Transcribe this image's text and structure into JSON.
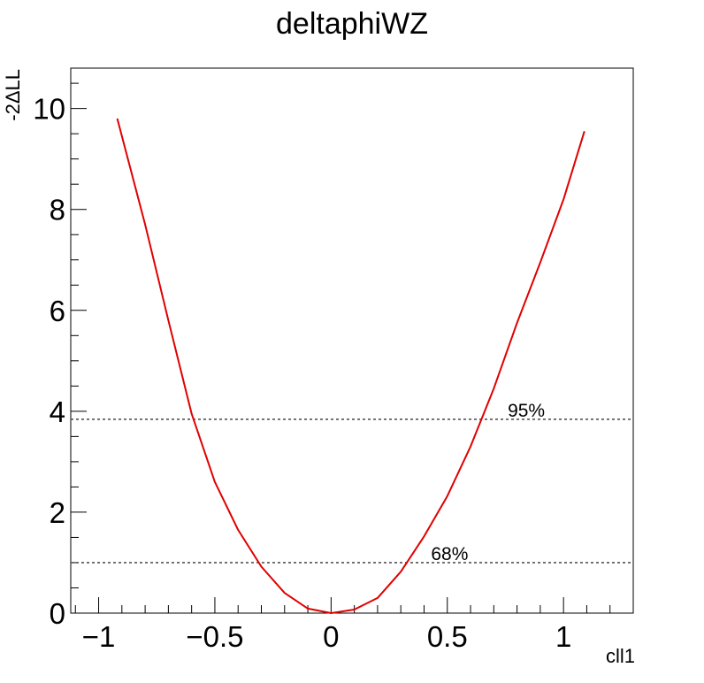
{
  "chart_data": {
    "type": "line",
    "title": "deltaphiWZ",
    "xlabel": "cll1",
    "ylabel": "-2ΔLL",
    "xlim": [
      -1.12,
      1.3
    ],
    "ylim": [
      0,
      10.8
    ],
    "x_ticks": [
      -1,
      -0.5,
      0,
      0.5,
      1
    ],
    "x_tick_labels": [
      "−1",
      "−0.5",
      "0",
      "0.5",
      "1"
    ],
    "y_ticks": [
      0,
      2,
      4,
      6,
      8,
      10
    ],
    "y_tick_labels": [
      "0",
      "2",
      "4",
      "6",
      "8",
      "10"
    ],
    "grid": false,
    "series": [
      {
        "color": "#e00000",
        "x": [
          -0.92,
          -0.8,
          -0.7,
          -0.6,
          -0.5,
          -0.4,
          -0.3,
          -0.2,
          -0.1,
          0.0,
          0.1,
          0.2,
          0.3,
          0.4,
          0.5,
          0.6,
          0.7,
          0.8,
          0.9,
          1.0,
          1.09
        ],
        "values": [
          9.8,
          7.7,
          5.8,
          3.95,
          2.6,
          1.65,
          0.92,
          0.4,
          0.09,
          0.0,
          0.07,
          0.3,
          0.82,
          1.52,
          2.32,
          3.3,
          4.45,
          5.75,
          6.95,
          8.2,
          9.55
        ]
      }
    ],
    "reference_lines": [
      {
        "y": 3.84,
        "label": "95%",
        "label_x": 0.76
      },
      {
        "y": 1.0,
        "label": "68%",
        "label_x": 0.43
      }
    ],
    "reference_line_color": "#555555"
  }
}
